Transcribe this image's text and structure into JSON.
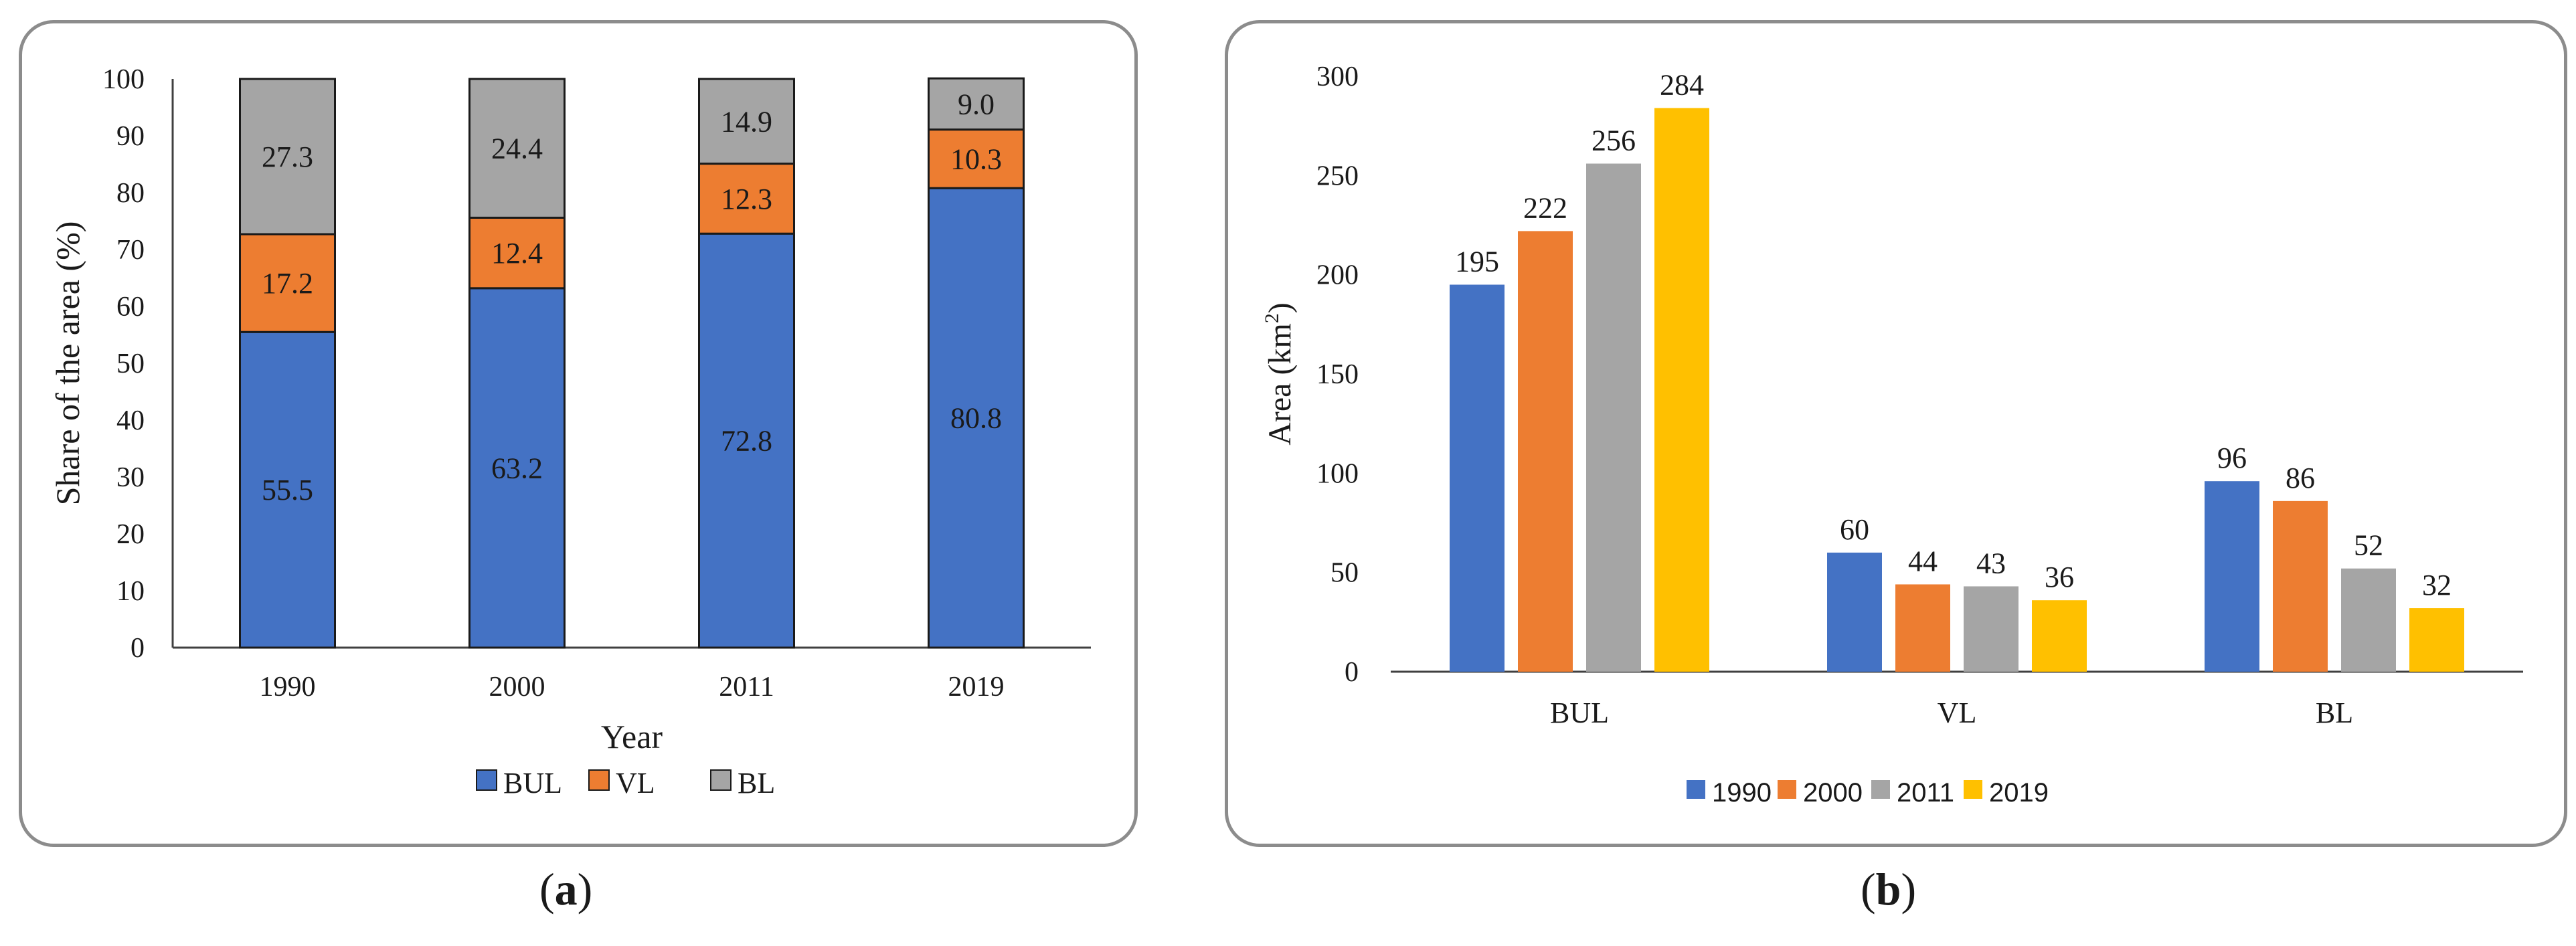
{
  "panels": {
    "a": {
      "label_open": "(",
      "label_letter": "a",
      "label_close": ")"
    },
    "b": {
      "label_open": "(",
      "label_letter": "b",
      "label_close": ")"
    }
  },
  "colors": {
    "BUL": "#4472c4",
    "VL": "#ed7d31",
    "BL": "#a5a5a5",
    "y2019": "#ffc000"
  },
  "chart_data": [
    {
      "id": "a",
      "type": "bar",
      "stacked": true,
      "categories": [
        "1990",
        "2000",
        "2011",
        "2019"
      ],
      "series": [
        {
          "name": "BUL",
          "values": [
            55.5,
            63.2,
            72.8,
            80.8
          ],
          "labels": [
            "55.5",
            "63.2",
            "72.8",
            "80.8"
          ]
        },
        {
          "name": "VL",
          "values": [
            17.2,
            12.4,
            12.3,
            10.3
          ],
          "labels": [
            "17.2",
            "12.4",
            "12.3",
            "10.3"
          ]
        },
        {
          "name": "BL",
          "values": [
            27.3,
            24.4,
            14.9,
            9.0
          ],
          "labels": [
            "27.3",
            "24.4",
            "14.9",
            "9.0"
          ]
        }
      ],
      "title": "",
      "xlabel": "Year",
      "ylabel": "Share of the area (%)",
      "ylim": [
        0,
        100
      ],
      "yticks": [
        "0",
        "10",
        "20",
        "30",
        "40",
        "50",
        "60",
        "70",
        "80",
        "90",
        "100"
      ],
      "legend": "bottom"
    },
    {
      "id": "b",
      "type": "bar",
      "stacked": false,
      "categories": [
        "BUL",
        "VL",
        "BL"
      ],
      "series": [
        {
          "name": "1990",
          "values": [
            195,
            60,
            96
          ]
        },
        {
          "name": "2000",
          "values": [
            222,
            44,
            86
          ]
        },
        {
          "name": "2011",
          "values": [
            256,
            43,
            52
          ]
        },
        {
          "name": "2019",
          "values": [
            284,
            36,
            32
          ]
        }
      ],
      "title": "",
      "xlabel": "",
      "ylabel_main": "Area (km",
      "ylabel_sup": "2",
      "ylabel_close": ")",
      "ylim": [
        0,
        300
      ],
      "yticks": [
        "0",
        "50",
        "100",
        "150",
        "200",
        "250",
        "300"
      ],
      "legend": "bottom"
    }
  ]
}
